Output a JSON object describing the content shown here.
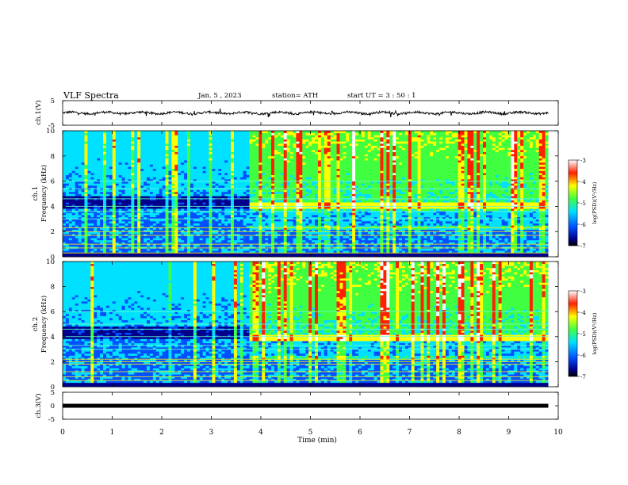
{
  "header": {
    "title": "VLF  Spectra",
    "date": "Jan.  5  ,  2023",
    "station": "station= ATH",
    "start": "start  UT  =    3  : 50 : 1"
  },
  "chart_data": [
    {
      "type": "line",
      "name": "ch1-waveform",
      "ylabel": "ch.1(V)",
      "ylim": [
        -5,
        5
      ],
      "yticks": [
        "5",
        "-5"
      ],
      "xlim": [
        0,
        10
      ],
      "baseline_value": 0,
      "record_end_min": 9.8
    },
    {
      "type": "heatmap",
      "name": "ch1-spectrogram",
      "ylabel_top": "ch.1",
      "ylabel": "Frequency  (kHz)",
      "ylim": [
        0,
        10
      ],
      "yticks": [
        "0",
        "2",
        "4",
        "6",
        "8",
        "10"
      ],
      "xlim": [
        0,
        10
      ],
      "transition_min": 3.75,
      "lines_khz": [
        0.3,
        0.7,
        1.0,
        1.7,
        2.0,
        2.3,
        3.0,
        3.6,
        4.0,
        4.6,
        5.4,
        6.0
      ],
      "bright_band_khz": [
        3.8,
        4.3
      ],
      "colorbar": {
        "label": "log(PSD)(V²/Hz)",
        "range": [
          -7,
          -3
        ],
        "ticks": [
          "-3",
          "-4",
          "-5",
          "-6",
          "-7"
        ]
      }
    },
    {
      "type": "heatmap",
      "name": "ch2-spectrogram",
      "ylabel_top": "ch.2",
      "ylabel": "Frequency  (kHz)",
      "ylim": [
        0,
        10
      ],
      "yticks": [
        "0",
        "2",
        "4",
        "6",
        "8",
        "10"
      ],
      "xlim": [
        0,
        10
      ],
      "transition_min": 3.75,
      "lines_khz": [
        0.5,
        0.8,
        1.2,
        1.8,
        2.0,
        2.2,
        3.0,
        3.3,
        4.0,
        4.6,
        5.0,
        6.0
      ],
      "bright_band_khz": [
        3.6,
        4.2
      ],
      "colorbar": {
        "label": "log(PSD)(V²/Hz)",
        "range": [
          -7,
          -3
        ],
        "ticks": [
          "-3",
          "-4",
          "-5",
          "-6",
          "-7"
        ]
      }
    },
    {
      "type": "line",
      "name": "ch3-waveform",
      "ylabel": "ch.3(V)",
      "ylim": [
        -5,
        5
      ],
      "yticks": [
        "5",
        "0",
        "-5"
      ],
      "xlim": [
        0,
        10
      ],
      "baseline_value": 0,
      "record_end_min": 9.8
    }
  ],
  "xaxis": {
    "label": "Time  (min)",
    "ticks": [
      "0",
      "1",
      "2",
      "3",
      "4",
      "5",
      "6",
      "7",
      "8",
      "9",
      "10"
    ]
  },
  "colors": {
    "dark_blue": "#00008b",
    "blue": "#0050ff",
    "cyan": "#00e0ff",
    "green": "#40ff40",
    "yellow": "#ffff00",
    "red": "#ff2000"
  }
}
